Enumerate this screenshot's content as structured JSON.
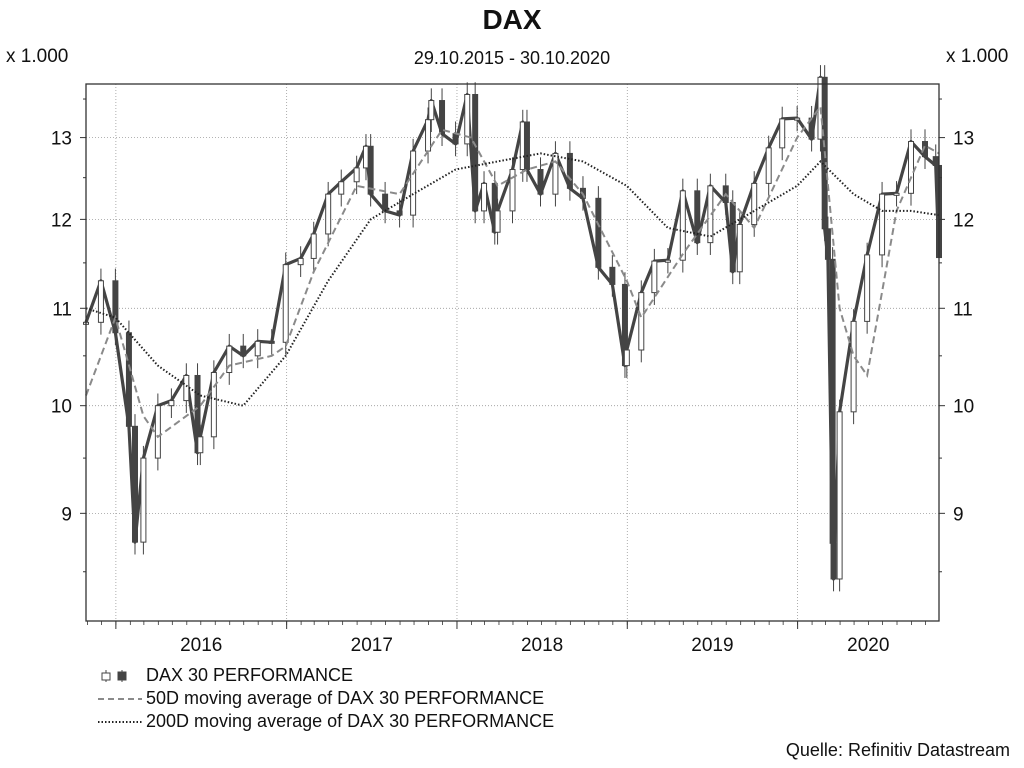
{
  "header": {
    "title": "DAX",
    "subtitle": "29.10.2015 - 30.10.2020",
    "unit_left": "x 1.000",
    "unit_right": "x 1.000"
  },
  "source": "Quelle: Refinitiv Datastream",
  "colors": {
    "candles": "#444444",
    "ma50": "#8a8a8a",
    "ma200": "#222222",
    "grid": "#9a9a9a"
  },
  "chart_data": {
    "type": "line",
    "title": "DAX",
    "subtitle": "29.10.2015 - 30.10.2020",
    "x_range": [
      "2015-10-29",
      "2020-10-30"
    ],
    "x_ticks": [
      "2016",
      "2017",
      "2018",
      "2019",
      "2020"
    ],
    "y_unit": "x 1.000",
    "y_ticks": [
      9,
      10,
      11,
      12,
      13
    ],
    "ylim": [
      8.1,
      13.7
    ],
    "y_scale": "log",
    "grid": true,
    "legend_position": "bottom-left",
    "series": [
      {
        "name": "DAX 30 PERFORMANCE",
        "style": "candlestick",
        "x": [
          "2015-10-29",
          "2015-11-30",
          "2015-12-31",
          "2016-01-29",
          "2016-02-11",
          "2016-02-29",
          "2016-03-31",
          "2016-04-29",
          "2016-05-31",
          "2016-06-24",
          "2016-06-30",
          "2016-07-29",
          "2016-08-31",
          "2016-09-30",
          "2016-10-31",
          "2016-11-30",
          "2016-12-30",
          "2017-01-31",
          "2017-02-28",
          "2017-03-31",
          "2017-04-28",
          "2017-05-31",
          "2017-06-20",
          "2017-06-30",
          "2017-07-31",
          "2017-08-31",
          "2017-09-29",
          "2017-10-31",
          "2017-11-07",
          "2017-11-30",
          "2017-12-29",
          "2018-01-23",
          "2018-02-09",
          "2018-02-28",
          "2018-03-23",
          "2018-03-29",
          "2018-04-30",
          "2018-05-22",
          "2018-05-31",
          "2018-06-29",
          "2018-07-31",
          "2018-08-31",
          "2018-09-28",
          "2018-10-31",
          "2018-11-30",
          "2018-12-27",
          "2018-12-31",
          "2019-01-31",
          "2019-02-28",
          "2019-03-29",
          "2019-04-30",
          "2019-05-31",
          "2019-06-28",
          "2019-07-31",
          "2019-08-15",
          "2019-08-30",
          "2019-09-30",
          "2019-10-31",
          "2019-11-29",
          "2019-12-31",
          "2020-01-31",
          "2020-02-19",
          "2020-02-28",
          "2020-03-06",
          "2020-03-16",
          "2020-03-18",
          "2020-03-31",
          "2020-04-30",
          "2020-05-29",
          "2020-06-30",
          "2020-07-31",
          "2020-08-31",
          "2020-09-30",
          "2020-10-23",
          "2020-10-30"
        ],
        "values": [
          10.85,
          11.3,
          10.74,
          9.8,
          8.75,
          9.5,
          10.0,
          10.05,
          10.3,
          9.55,
          9.7,
          10.33,
          10.6,
          10.5,
          10.65,
          10.64,
          11.48,
          11.55,
          11.83,
          12.3,
          12.45,
          12.62,
          12.89,
          12.3,
          12.1,
          12.05,
          12.83,
          13.23,
          13.48,
          13.05,
          12.92,
          13.56,
          12.1,
          12.43,
          11.85,
          12.1,
          12.6,
          13.2,
          12.6,
          12.3,
          12.8,
          12.37,
          12.25,
          11.45,
          11.26,
          10.4,
          10.56,
          11.17,
          11.52,
          11.53,
          12.34,
          11.73,
          12.4,
          12.2,
          11.4,
          11.94,
          12.43,
          12.87,
          13.24,
          13.25,
          12.98,
          13.79,
          11.89,
          11.54,
          8.74,
          8.44,
          9.94,
          10.86,
          11.59,
          12.3,
          12.31,
          12.95,
          12.76,
          12.65,
          11.56
        ]
      },
      {
        "name": "50D moving average of DAX 30 PERFORMANCE",
        "style": "dashed",
        "x": [
          "2015-10-29",
          "2015-12-31",
          "2016-02-29",
          "2016-03-31",
          "2016-06-30",
          "2016-08-31",
          "2016-11-30",
          "2016-12-30",
          "2017-02-28",
          "2017-05-31",
          "2017-08-31",
          "2017-11-30",
          "2018-01-31",
          "2018-03-29",
          "2018-05-31",
          "2018-07-31",
          "2018-09-28",
          "2018-12-31",
          "2019-01-31",
          "2019-04-30",
          "2019-07-31",
          "2019-09-30",
          "2019-12-31",
          "2020-02-19",
          "2020-03-31",
          "2020-04-30",
          "2020-05-29",
          "2020-07-31",
          "2020-09-30",
          "2020-10-30"
        ],
        "values": [
          10.1,
          10.9,
          9.9,
          9.7,
          10.0,
          10.4,
          10.5,
          10.6,
          11.4,
          12.4,
          12.3,
          13.1,
          13.0,
          12.4,
          12.6,
          12.7,
          12.3,
          11.3,
          10.9,
          11.6,
          12.3,
          11.9,
          13.0,
          13.4,
          11.0,
          10.5,
          10.3,
          12.1,
          12.9,
          12.8
        ]
      },
      {
        "name": "200D moving average of DAX 30 PERFORMANCE",
        "style": "dotted",
        "x": [
          "2015-10-29",
          "2015-12-31",
          "2016-03-31",
          "2016-06-30",
          "2016-09-30",
          "2016-12-30",
          "2017-03-31",
          "2017-06-30",
          "2017-09-29",
          "2017-12-29",
          "2018-03-29",
          "2018-06-29",
          "2018-09-28",
          "2018-12-31",
          "2019-03-29",
          "2019-06-28",
          "2019-09-30",
          "2019-12-31",
          "2020-02-19",
          "2020-04-30",
          "2020-06-30",
          "2020-08-31",
          "2020-10-30"
        ],
        "values": [
          11.0,
          10.9,
          10.4,
          10.1,
          10.0,
          10.5,
          11.3,
          12.0,
          12.3,
          12.6,
          12.7,
          12.8,
          12.7,
          12.4,
          11.9,
          11.8,
          12.1,
          12.4,
          12.7,
          12.3,
          12.1,
          12.1,
          12.05
        ]
      }
    ]
  }
}
